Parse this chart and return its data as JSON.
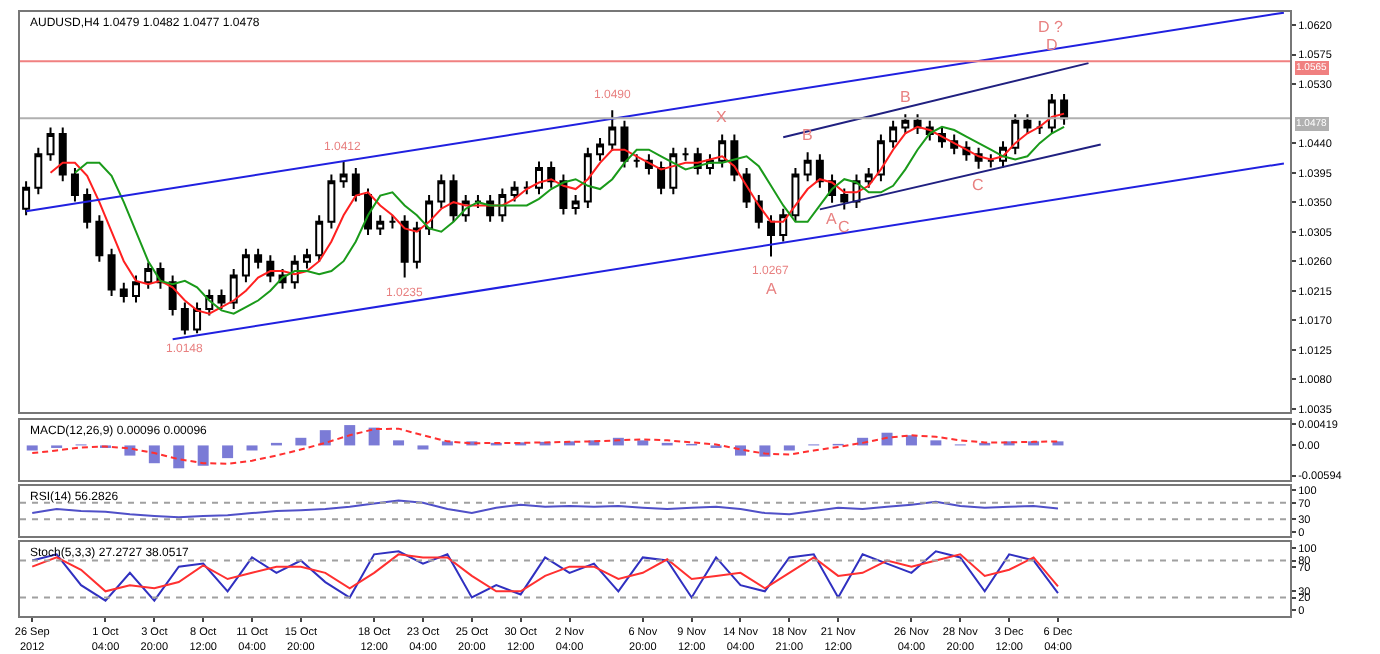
{
  "chart_data": [
    {
      "type": "candlestick",
      "title": "AUDUSD,H4 1.0479 1.0482 1.0477 1.0478",
      "tick_labels": "y",
      "categories": [
        null,
        null,
        null,
        null,
        null,
        null,
        null,
        null,
        null,
        null,
        null,
        null,
        null,
        null,
        null,
        null,
        null,
        null,
        null,
        null,
        null,
        null,
        null,
        null,
        null,
        null,
        null,
        null,
        null,
        null,
        null,
        null,
        null,
        null,
        null,
        null,
        null,
        null,
        null,
        null,
        null,
        null,
        null,
        null,
        null,
        null,
        null,
        null,
        null,
        null,
        null,
        null,
        null,
        null,
        null,
        null,
        null,
        null,
        null,
        null,
        null,
        null,
        null,
        null,
        null,
        null,
        null,
        null,
        null,
        null,
        null,
        null,
        null,
        null,
        null,
        null,
        null,
        null,
        null,
        null,
        null,
        null,
        null,
        null,
        null,
        null,
        null,
        null,
        null,
        null,
        null,
        null,
        null,
        null,
        null,
        null,
        null,
        null,
        null,
        null,
        null,
        null,
        null,
        null
      ],
      "ohlc": [
        [
          1.034,
          1.0382,
          1.033,
          1.0372
        ],
        [
          1.0372,
          1.0433,
          1.0362,
          1.0423
        ],
        [
          1.0423,
          1.0464,
          1.0413,
          1.0454
        ],
        [
          1.0454,
          1.0464,
          1.0382,
          1.0392
        ],
        [
          1.0392,
          1.0402,
          1.0351,
          1.0361
        ],
        [
          1.0361,
          1.0371,
          1.031,
          1.032
        ],
        [
          1.032,
          1.033,
          1.0259,
          1.0269
        ],
        [
          1.0269,
          1.0279,
          1.0207,
          1.0217
        ],
        [
          1.0217,
          1.0227,
          1.0197,
          1.0207
        ],
        [
          1.0207,
          1.0238,
          1.0197,
          1.0228
        ],
        [
          1.0228,
          1.0258,
          1.0218,
          1.0248
        ],
        [
          1.0248,
          1.0258,
          1.0218,
          1.0228
        ],
        [
          1.0228,
          1.0238,
          1.0177,
          1.0187
        ],
        [
          1.0187,
          1.0197,
          1.0148,
          1.0156
        ],
        [
          1.0156,
          1.0197,
          1.015,
          1.0187
        ],
        [
          1.0187,
          1.0217,
          1.0177,
          1.0207
        ],
        [
          1.0207,
          1.0217,
          1.0187,
          1.0197
        ],
        [
          1.0197,
          1.0248,
          1.0187,
          1.0238
        ],
        [
          1.0238,
          1.0279,
          1.0228,
          1.0269
        ],
        [
          1.0269,
          1.0279,
          1.0249,
          1.0259
        ],
        [
          1.0259,
          1.0269,
          1.0228,
          1.0238
        ],
        [
          1.0238,
          1.0248,
          1.0218,
          1.0228
        ],
        [
          1.0228,
          1.0269,
          1.0218,
          1.0259
        ],
        [
          1.0259,
          1.0279,
          1.0249,
          1.0269
        ],
        [
          1.0269,
          1.033,
          1.0259,
          1.032
        ],
        [
          1.032,
          1.0392,
          1.031,
          1.0382
        ],
        [
          1.0382,
          1.0412,
          1.0372,
          1.0392
        ],
        [
          1.0392,
          1.0402,
          1.0351,
          1.0361
        ],
        [
          1.0361,
          1.0371,
          1.03,
          1.031
        ],
        [
          1.031,
          1.033,
          1.03,
          1.032
        ],
        [
          1.032,
          1.033,
          1.031,
          1.032
        ],
        [
          1.032,
          1.033,
          1.0235,
          1.0259
        ],
        [
          1.0259,
          1.032,
          1.0249,
          1.031
        ],
        [
          1.031,
          1.0361,
          1.03,
          1.0351
        ],
        [
          1.0351,
          1.0392,
          1.0341,
          1.0382
        ],
        [
          1.0382,
          1.0392,
          1.032,
          1.033
        ],
        [
          1.033,
          1.0361,
          1.032,
          1.0351
        ],
        [
          1.0351,
          1.0361,
          1.0341,
          1.0351
        ],
        [
          1.0351,
          1.0361,
          1.032,
          1.033
        ],
        [
          1.033,
          1.0371,
          1.032,
          1.0361
        ],
        [
          1.0361,
          1.0382,
          1.0351,
          1.0372
        ],
        [
          1.0372,
          1.0382,
          1.0362,
          1.0372
        ],
        [
          1.0372,
          1.0412,
          1.0362,
          1.0402
        ],
        [
          1.0402,
          1.0412,
          1.0372,
          1.0382
        ],
        [
          1.0382,
          1.0392,
          1.0331,
          1.0341
        ],
        [
          1.0341,
          1.0361,
          1.0331,
          1.0351
        ],
        [
          1.0351,
          1.0433,
          1.0341,
          1.0423
        ],
        [
          1.0423,
          1.0448,
          1.0413,
          1.0438
        ],
        [
          1.0438,
          1.049,
          1.0428,
          1.0464
        ],
        [
          1.0464,
          1.0474,
          1.0403,
          1.0413
        ],
        [
          1.0413,
          1.0423,
          1.0403,
          1.0413
        ],
        [
          1.0413,
          1.0423,
          1.0392,
          1.0402
        ],
        [
          1.0402,
          1.0412,
          1.0362,
          1.0372
        ],
        [
          1.0372,
          1.0433,
          1.0362,
          1.0423
        ],
        [
          1.0423,
          1.0433,
          1.0413,
          1.0423
        ],
        [
          1.0423,
          1.0433,
          1.0392,
          1.0402
        ],
        [
          1.0402,
          1.0423,
          1.0392,
          1.0413
        ],
        [
          1.0413,
          1.0453,
          1.0403,
          1.0443
        ],
        [
          1.0443,
          1.0453,
          1.0382,
          1.0392
        ],
        [
          1.0392,
          1.0402,
          1.0341,
          1.0351
        ],
        [
          1.0351,
          1.0361,
          1.031,
          1.032
        ],
        [
          1.032,
          1.033,
          1.0267,
          1.03
        ],
        [
          1.03,
          1.034,
          1.029,
          1.033
        ],
        [
          1.033,
          1.0402,
          1.032,
          1.0392
        ],
        [
          1.0392,
          1.0426,
          1.0382,
          1.0413
        ],
        [
          1.0413,
          1.0423,
          1.0372,
          1.0382
        ],
        [
          1.0382,
          1.0392,
          1.0349,
          1.0361
        ],
        [
          1.0361,
          1.0371,
          1.0339,
          1.0351
        ],
        [
          1.0351,
          1.0392,
          1.0341,
          1.0382
        ],
        [
          1.0382,
          1.0402,
          1.0372,
          1.0392
        ],
        [
          1.0392,
          1.0453,
          1.0382,
          1.0443
        ],
        [
          1.0443,
          1.0474,
          1.0433,
          1.0464
        ],
        [
          1.0464,
          1.0484,
          1.0454,
          1.0474
        ],
        [
          1.0474,
          1.0484,
          1.0454,
          1.0464
        ],
        [
          1.0464,
          1.0474,
          1.0444,
          1.0454
        ],
        [
          1.0454,
          1.0464,
          1.0433,
          1.0443
        ],
        [
          1.0443,
          1.0453,
          1.0423,
          1.0433
        ],
        [
          1.0433,
          1.0443,
          1.0413,
          1.0423
        ],
        [
          1.0423,
          1.0433,
          1.0401,
          1.0413
        ],
        [
          1.0413,
          1.0423,
          1.0403,
          1.0413
        ],
        [
          1.0413,
          1.0443,
          1.0403,
          1.0433
        ],
        [
          1.0433,
          1.0484,
          1.0423,
          1.0474
        ],
        [
          1.0474,
          1.0484,
          1.0454,
          1.0464
        ],
        [
          1.0464,
          1.0474,
          1.0454,
          1.0464
        ],
        [
          1.0464,
          1.0515,
          1.0454,
          1.0505
        ],
        [
          1.0505,
          1.0515,
          1.0468,
          1.0478
        ],
        null,
        null,
        null,
        null,
        null,
        null,
        null,
        null,
        null,
        null,
        null,
        null,
        null,
        null,
        null,
        null,
        null,
        null
      ],
      "series": [
        {
          "type": "line",
          "color": "#ff2020",
          "values": [
            null,
            null,
            1.0395,
            1.041,
            1.041,
            1.039,
            1.035,
            1.0305,
            1.026,
            1.023,
            1.0225,
            1.023,
            1.022,
            1.02,
            1.0185,
            1.018,
            1.019,
            1.02,
            1.0215,
            1.0235,
            1.0245,
            1.0245,
            1.024,
            1.0245,
            1.026,
            1.029,
            1.033,
            1.036,
            1.0365,
            1.0345,
            1.033,
            1.031,
            1.0305,
            1.032,
            1.034,
            1.035,
            1.0345,
            1.0345,
            1.0345,
            1.0345,
            1.0355,
            1.037,
            1.038,
            1.0385,
            1.0375,
            1.037,
            1.0385,
            1.041,
            1.043,
            1.043,
            1.042,
            1.041,
            1.04,
            1.0405,
            1.041,
            1.041,
            1.0415,
            1.042,
            1.0405,
            1.0375,
            1.0345,
            1.032,
            1.032,
            1.0345,
            1.037,
            1.0385,
            1.038,
            1.0365,
            1.0365,
            1.0375,
            1.04,
            1.043,
            1.0455,
            1.0465,
            1.046,
            1.045,
            1.044,
            1.043,
            1.042,
            1.0415,
            1.042,
            1.044,
            1.0455,
            1.0465,
            1.048,
            1.0485,
            null,
            null,
            null,
            null,
            null,
            null,
            null,
            null,
            null,
            null,
            null,
            null,
            null,
            null,
            null,
            null,
            null,
            null
          ]
        },
        {
          "type": "line",
          "color": "#1a9a1a",
          "values": [
            null,
            null,
            null,
            null,
            1.0395,
            1.041,
            1.041,
            1.039,
            1.035,
            1.0305,
            1.026,
            1.023,
            1.0225,
            1.023,
            1.022,
            1.02,
            1.0185,
            1.018,
            1.019,
            1.02,
            1.0215,
            1.0235,
            1.0245,
            1.0245,
            1.024,
            1.0245,
            1.026,
            1.029,
            1.033,
            1.036,
            1.0365,
            1.0345,
            1.033,
            1.031,
            1.0305,
            1.032,
            1.034,
            1.035,
            1.0345,
            1.0345,
            1.0345,
            1.0345,
            1.0355,
            1.037,
            1.038,
            1.0385,
            1.0375,
            1.037,
            1.0385,
            1.041,
            1.043,
            1.043,
            1.042,
            1.041,
            1.04,
            1.0405,
            1.041,
            1.041,
            1.0415,
            1.042,
            1.0405,
            1.0375,
            1.0345,
            1.032,
            1.032,
            1.0345,
            1.037,
            1.0385,
            1.038,
            1.0365,
            1.0365,
            1.0375,
            1.04,
            1.043,
            1.0455,
            1.0465,
            1.046,
            1.045,
            1.044,
            1.043,
            1.042,
            1.0415,
            1.042,
            1.044,
            1.0455,
            1.0465,
            null,
            null,
            null,
            null,
            null,
            null,
            null,
            null,
            null,
            null,
            null,
            null,
            null,
            null,
            null,
            null,
            null,
            null
          ]
        },
        {
          "type": "line",
          "color": "#2020e0",
          "values": [
            1.0336,
            null,
            null,
            null,
            null,
            null,
            null,
            null,
            null,
            null,
            null,
            null,
            null,
            null,
            null,
            null,
            null,
            null,
            null,
            null,
            null,
            null,
            null,
            null,
            null,
            null,
            null,
            null,
            null,
            null,
            null,
            null,
            null,
            null,
            null,
            null,
            null,
            null,
            null,
            null,
            null,
            null,
            null,
            null,
            null,
            null,
            null,
            null,
            null,
            null,
            null,
            null,
            null,
            null,
            null,
            null,
            null,
            null,
            null,
            null,
            null,
            null,
            null,
            null,
            null,
            null,
            null,
            null,
            null,
            null,
            null,
            null,
            null,
            null,
            null,
            null,
            null,
            null,
            null,
            null,
            null,
            null,
            null,
            null,
            null,
            null,
            null,
            null,
            null,
            null,
            null,
            null,
            null,
            null,
            null,
            null,
            null,
            null,
            null,
            null,
            null,
            null,
            null,
            1.0639
          ]
        },
        {
          "type": "line",
          "color": "#2020e0",
          "values": [
            null,
            null,
            null,
            null,
            null,
            null,
            null,
            null,
            null,
            null,
            null,
            null,
            1.0141,
            null,
            null,
            null,
            null,
            null,
            null,
            null,
            null,
            null,
            null,
            null,
            null,
            null,
            null,
            null,
            null,
            null,
            null,
            null,
            null,
            null,
            null,
            null,
            null,
            null,
            null,
            null,
            null,
            null,
            null,
            null,
            null,
            null,
            null,
            null,
            null,
            null,
            null,
            null,
            null,
            null,
            null,
            null,
            null,
            null,
            null,
            null,
            null,
            null,
            null,
            null,
            null,
            null,
            null,
            null,
            null,
            null,
            null,
            null,
            null,
            null,
            null,
            null,
            null,
            null,
            null,
            null,
            null,
            null,
            null,
            null,
            null,
            null,
            null,
            null,
            null,
            null,
            null,
            null,
            null,
            null,
            null,
            null,
            null,
            null,
            null,
            null,
            null,
            null,
            null,
            1.0409
          ]
        },
        {
          "type": "line",
          "color": "#202080",
          "values": [
            null,
            null,
            null,
            null,
            null,
            null,
            null,
            null,
            null,
            null,
            null,
            null,
            null,
            null,
            null,
            null,
            null,
            null,
            null,
            null,
            null,
            null,
            null,
            null,
            null,
            null,
            null,
            null,
            null,
            null,
            null,
            null,
            null,
            null,
            null,
            null,
            null,
            null,
            null,
            null,
            null,
            null,
            null,
            null,
            null,
            null,
            null,
            null,
            null,
            null,
            null,
            null,
            null,
            null,
            null,
            null,
            null,
            null,
            null,
            null,
            null,
            null,
            1.0449,
            null,
            null,
            null,
            null,
            null,
            null,
            null,
            null,
            null,
            null,
            null,
            null,
            null,
            null,
            null,
            null,
            null,
            null,
            null,
            null,
            null,
            null,
            null,
            null,
            1.0562,
            null,
            null,
            null,
            null,
            null,
            null,
            null,
            null,
            null,
            null,
            null,
            null,
            null,
            null,
            null,
            null
          ]
        },
        {
          "type": "line",
          "color": "#202080",
          "values": [
            null,
            null,
            null,
            null,
            null,
            null,
            null,
            null,
            null,
            null,
            null,
            null,
            null,
            null,
            null,
            null,
            null,
            null,
            null,
            null,
            null,
            null,
            null,
            null,
            null,
            null,
            null,
            null,
            null,
            null,
            null,
            null,
            null,
            null,
            null,
            null,
            null,
            null,
            null,
            null,
            null,
            null,
            null,
            null,
            null,
            null,
            null,
            null,
            null,
            null,
            null,
            null,
            null,
            null,
            null,
            null,
            null,
            null,
            null,
            null,
            null,
            null,
            null,
            null,
            null,
            1.0339,
            null,
            null,
            null,
            null,
            null,
            null,
            null,
            null,
            null,
            null,
            null,
            null,
            null,
            null,
            null,
            null,
            null,
            null,
            null,
            null,
            null,
            null,
            1.0438,
            null,
            null,
            null,
            null,
            null,
            null,
            null,
            null,
            null,
            null,
            null,
            null,
            null,
            null,
            null
          ]
        }
      ],
      "ylim": [
        1.003,
        1.064
      ],
      "yticks": [
        {
          "value": 1.062,
          "label": "1.0620"
        },
        {
          "value": 1.0575,
          "label": "1.0575"
        },
        {
          "value": 1.053,
          "label": "1.0530"
        },
        {
          "value": 1.044,
          "label": "1.0440"
        },
        {
          "value": 1.0395,
          "label": "1.0395"
        },
        {
          "value": 1.035,
          "label": "1.0350"
        },
        {
          "value": 1.0305,
          "label": "1.0305"
        },
        {
          "value": 1.026,
          "label": "1.0260"
        },
        {
          "value": 1.0215,
          "label": "1.0215"
        },
        {
          "value": 1.017,
          "label": "1.0170"
        },
        {
          "value": 1.0125,
          "label": "1.0125"
        },
        {
          "value": 1.008,
          "label": "1.0080"
        },
        {
          "value": 1.0035,
          "label": "1.0035"
        }
      ],
      "ref_lines": [
        {
          "axis": "y",
          "value": 1.0565,
          "label": "1.0565",
          "color": "#f08080"
        },
        {
          "axis": "y",
          "value": 1.0478,
          "label": "1.0478",
          "color": "#b0b0b0"
        }
      ],
      "annotations": [
        {
          "text": "1.0148",
          "y": 1.0148
        },
        {
          "text": "1.0412",
          "y": 1.0412
        },
        {
          "text": "1.0235",
          "y": 1.0235
        },
        {
          "text": "1.0490",
          "y": 1.049
        },
        {
          "text": "X",
          "y": 1.0453
        },
        {
          "text": "1.0267",
          "y": 1.0267
        },
        {
          "text": "A",
          "y": 1.0267
        },
        {
          "text": "B",
          "y": 1.0426
        },
        {
          "text": "C",
          "y": 1.0339
        },
        {
          "text": "A",
          "y": 1.0349
        },
        {
          "text": "B",
          "y": 1.0484
        },
        {
          "text": "C",
          "y": 1.0401
        },
        {
          "text": "D",
          "y": 1.0565
        },
        {
          "text": "D ?",
          "y": 1.059
        }
      ]
    },
    {
      "type": "bar",
      "title": "MACD(12,26,9) 0.00096 0.00096",
      "tick_labels": "y",
      "categories": [
        null,
        null,
        null,
        null,
        null,
        null,
        null,
        null,
        null,
        null,
        null,
        null,
        null,
        null,
        null,
        null,
        null,
        null,
        null,
        null,
        null,
        null,
        null,
        null,
        null,
        null,
        null,
        null,
        null,
        null,
        null,
        null,
        null,
        null,
        null,
        null,
        null,
        null,
        null,
        null,
        null,
        null,
        null,
        null,
        null,
        null,
        null,
        null,
        null,
        null,
        null,
        null
      ],
      "series": [
        {
          "type": "bar",
          "color": "#7b7bd6",
          "values": [
            -0.001,
            -0.0005,
            0.0002,
            -0.0005,
            -0.002,
            -0.0035,
            -0.0045,
            -0.004,
            -0.0025,
            -0.001,
            0.0005,
            0.0015,
            0.003,
            0.004,
            0.0035,
            0.001,
            -0.0008,
            0.0008,
            0.0008,
            0.0005,
            0.0006,
            0.0007,
            0.0008,
            0.001,
            0.0015,
            0.001,
            0.0005,
            0.0003,
            -0.0005,
            -0.002,
            -0.0022,
            -0.001,
            0.0002,
            0.0003,
            0.0015,
            0.0025,
            0.002,
            0.001,
            0.0002,
            0.0005,
            0.0008,
            0.0008,
            0.0008,
            null,
            null,
            null,
            null,
            null,
            null,
            null,
            null,
            null
          ]
        },
        {
          "type": "line",
          "color": "#ff3030",
          "line_style": "dashed",
          "values": [
            -0.0015,
            -0.001,
            -0.0004,
            -0.0002,
            -0.0006,
            -0.0015,
            -0.0027,
            -0.0035,
            -0.0036,
            -0.003,
            -0.002,
            -0.0008,
            0.0005,
            0.002,
            0.0032,
            0.0033,
            0.002,
            0.0008,
            0.0004,
            0.0005,
            0.0005,
            0.0006,
            0.0007,
            0.0008,
            0.001,
            0.0012,
            0.001,
            0.0006,
            0.0002,
            -0.0008,
            -0.0016,
            -0.0018,
            -0.001,
            -0.0003,
            0.0005,
            0.0015,
            0.002,
            0.0017,
            0.001,
            0.0006,
            0.0006,
            0.0007,
            0.0008,
            null,
            null,
            null,
            null,
            null,
            null,
            null,
            null,
            null
          ]
        }
      ],
      "ylim": [
        -0.0068,
        0.005
      ],
      "yticks": [
        {
          "value": 0.00419,
          "label": "0.00419"
        },
        {
          "value": 0,
          "label": "0.00"
        },
        {
          "value": -0.00594,
          "label": "-0.00594"
        }
      ]
    },
    {
      "type": "line",
      "title": "RSI(14) 56.2826",
      "tick_labels": "y",
      "categories": [
        null,
        null,
        null,
        null,
        null,
        null,
        null,
        null,
        null,
        null,
        null,
        null,
        null,
        null,
        null,
        null,
        null,
        null,
        null,
        null,
        null,
        null,
        null,
        null,
        null,
        null,
        null,
        null,
        null,
        null,
        null,
        null,
        null,
        null,
        null,
        null,
        null,
        null,
        null,
        null,
        null,
        null,
        null,
        null,
        null,
        null,
        null,
        null,
        null,
        null,
        null,
        null
      ],
      "series": [
        {
          "color": "#5050c8",
          "values": [
            45,
            55,
            50,
            48,
            42,
            38,
            35,
            38,
            40,
            45,
            50,
            52,
            55,
            60,
            68,
            75,
            70,
            55,
            45,
            58,
            65,
            60,
            62,
            60,
            62,
            58,
            55,
            58,
            60,
            55,
            45,
            42,
            50,
            58,
            55,
            60,
            65,
            72,
            62,
            58,
            60,
            62,
            56,
            null,
            null,
            null,
            null,
            null,
            null,
            null,
            null,
            null
          ]
        }
      ],
      "ylim": [
        -10,
        110
      ],
      "yticks": [
        100,
        70,
        30,
        0
      ],
      "ref_lines": [
        {
          "axis": "y",
          "value": 70,
          "line_style": "dotted",
          "color": "#a0a0a0"
        },
        {
          "axis": "y",
          "value": 30,
          "line_style": "dotted",
          "color": "#a0a0a0"
        }
      ]
    },
    {
      "type": "line",
      "title": "Stoch(5,3,3) 27.2727 38.0517",
      "categories": [
        "26 Sep 2012",
        null,
        null,
        "1 Oct 04:00",
        null,
        "3 Oct 20:00",
        null,
        "8 Oct 12:00",
        null,
        "11 Oct 04:00",
        null,
        "15 Oct 20:00",
        null,
        null,
        "18 Oct 12:00",
        null,
        "23 Oct 04:00",
        null,
        "25 Oct 20:00",
        null,
        "30 Oct 12:00",
        null,
        "2 Nov 04:00",
        null,
        null,
        "6 Nov 20:00",
        null,
        "9 Nov 12:00",
        null,
        "14 Nov 04:00",
        null,
        "18 Nov 21:00",
        null,
        "21 Nov 12:00",
        null,
        null,
        "26 Nov 04:00",
        null,
        "28 Nov 20:00",
        null,
        "3 Dec 12:00",
        null,
        "6 Dec 04:00",
        null,
        null,
        null,
        null,
        null,
        null,
        null,
        null,
        null
      ],
      "series": [
        {
          "color": "#3030c0",
          "values": [
            80,
            90,
            40,
            15,
            60,
            15,
            70,
            75,
            30,
            85,
            60,
            80,
            45,
            20,
            90,
            95,
            75,
            90,
            20,
            40,
            25,
            85,
            60,
            75,
            30,
            85,
            80,
            20,
            85,
            40,
            30,
            85,
            90,
            20,
            90,
            75,
            60,
            95,
            85,
            30,
            90,
            80,
            27,
            null,
            null,
            null,
            null,
            null,
            null,
            null,
            null,
            null
          ]
        },
        {
          "color": "#ff3030",
          "values": [
            70,
            85,
            65,
            30,
            40,
            35,
            45,
            72,
            50,
            60,
            70,
            70,
            60,
            35,
            60,
            90,
            85,
            85,
            55,
            30,
            30,
            55,
            70,
            70,
            50,
            60,
            82,
            50,
            55,
            60,
            35,
            60,
            85,
            55,
            60,
            80,
            70,
            80,
            90,
            55,
            65,
            85,
            38,
            null,
            null,
            null,
            null,
            null,
            null,
            null,
            null,
            null
          ]
        }
      ],
      "ylim": [
        -10,
        110
      ],
      "yticks": [
        100,
        80,
        70,
        30,
        20,
        0
      ],
      "ref_lines": [
        {
          "axis": "y",
          "value": 80,
          "line_style": "dotted",
          "color": "#a0a0a0"
        },
        {
          "axis": "y",
          "value": 20,
          "line_style": "dotted",
          "color": "#a0a0a0"
        }
      ]
    }
  ]
}
